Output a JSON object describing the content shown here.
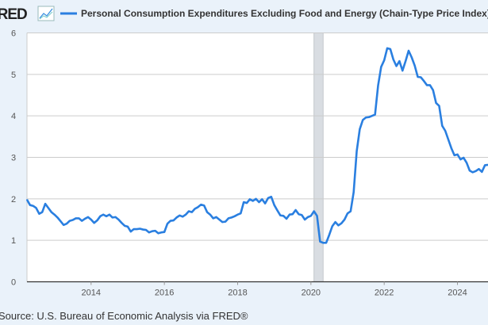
{
  "header": {
    "logo": "FRED",
    "logo_icon": "chart-line-icon"
  },
  "footer": {
    "source": "Source: U.S. Bureau of Economic Analysis via FRED®"
  },
  "chart_data": {
    "type": "line",
    "title": "",
    "xlabel": "",
    "ylabel": "",
    "ylim": [
      0,
      6
    ],
    "xlim": [
      "2012-04",
      "2024-11"
    ],
    "grid": true,
    "legend_position": "top",
    "y_ticks": [
      "0",
      "1",
      "2",
      "3",
      "4",
      "5",
      "6"
    ],
    "x_ticks": [
      "2014",
      "2016",
      "2018",
      "2020",
      "2022",
      "2024"
    ],
    "recession_shading": {
      "start": "2020-02",
      "end": "2020-04",
      "color": "#d9dde2"
    },
    "colors": {
      "line": "#2a7fe0",
      "background": "#eaf2fa",
      "plot": "#ffffff",
      "grid": "#cccccc"
    },
    "series": [
      {
        "name": "Personal Consumption Expenditures Excluding Food and Energy (Chain-Type Price Index)",
        "start": "2012-04",
        "frequency": "monthly",
        "values": [
          1.98,
          1.85,
          1.83,
          1.78,
          1.64,
          1.68,
          1.88,
          1.78,
          1.68,
          1.62,
          1.55,
          1.46,
          1.37,
          1.4,
          1.47,
          1.49,
          1.53,
          1.53,
          1.47,
          1.52,
          1.56,
          1.5,
          1.42,
          1.48,
          1.58,
          1.62,
          1.58,
          1.62,
          1.55,
          1.56,
          1.5,
          1.42,
          1.35,
          1.33,
          1.21,
          1.27,
          1.27,
          1.28,
          1.26,
          1.25,
          1.19,
          1.22,
          1.23,
          1.17,
          1.19,
          1.2,
          1.4,
          1.47,
          1.48,
          1.55,
          1.6,
          1.57,
          1.62,
          1.7,
          1.68,
          1.76,
          1.8,
          1.86,
          1.84,
          1.68,
          1.62,
          1.53,
          1.56,
          1.5,
          1.44,
          1.45,
          1.53,
          1.55,
          1.58,
          1.62,
          1.65,
          1.92,
          1.9,
          1.99,
          1.95,
          2.0,
          1.92,
          1.99,
          1.89,
          2.02,
          2.05,
          1.85,
          1.72,
          1.6,
          1.59,
          1.52,
          1.62,
          1.63,
          1.73,
          1.63,
          1.61,
          1.5,
          1.56,
          1.59,
          1.7,
          1.59,
          0.97,
          0.94,
          0.94,
          1.13,
          1.34,
          1.44,
          1.36,
          1.41,
          1.5,
          1.65,
          1.7,
          2.16,
          3.15,
          3.68,
          3.9,
          3.96,
          3.97,
          4.0,
          4.03,
          4.73,
          5.18,
          5.34,
          5.63,
          5.61,
          5.36,
          5.2,
          5.32,
          5.09,
          5.32,
          5.57,
          5.41,
          5.21,
          4.94,
          4.93,
          4.84,
          4.74,
          4.74,
          4.62,
          4.31,
          4.24,
          3.76,
          3.64,
          3.43,
          3.22,
          3.05,
          3.07,
          2.95,
          2.99,
          2.87,
          2.68,
          2.64,
          2.67,
          2.72,
          2.65,
          2.81,
          2.82
        ]
      }
    ]
  }
}
